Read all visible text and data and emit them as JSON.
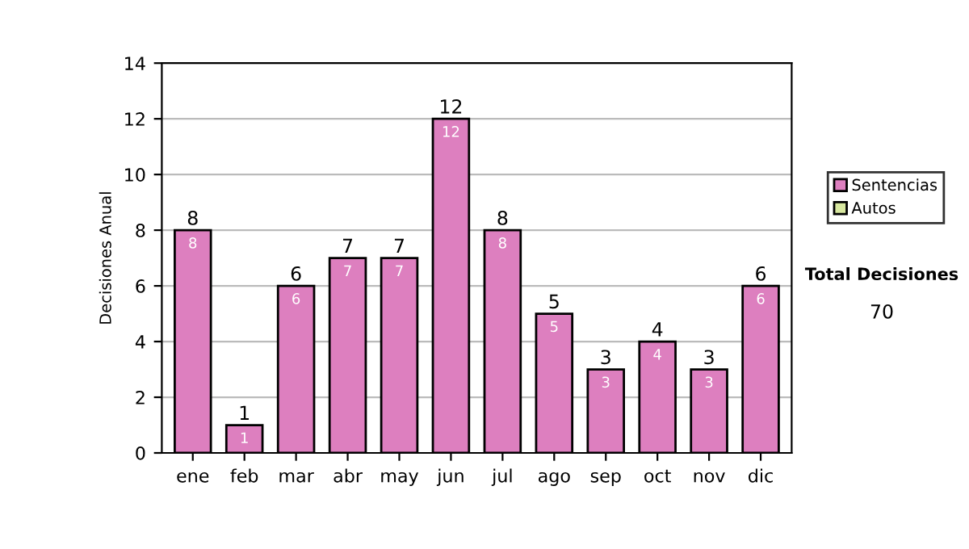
{
  "chart_data": {
    "type": "bar",
    "ylabel": "Decisiones Anual",
    "categories": [
      "ene",
      "feb",
      "mar",
      "abr",
      "may",
      "jun",
      "jul",
      "ago",
      "sep",
      "oct",
      "nov",
      "dic"
    ],
    "series": [
      {
        "name": "Sentencias",
        "color": "#dd7fbf",
        "values": [
          8,
          1,
          6,
          7,
          7,
          12,
          8,
          5,
          3,
          4,
          3,
          6
        ],
        "value_labels": [
          "8",
          "1",
          "6",
          "7",
          "7",
          "12",
          "8",
          "5",
          "3",
          "4",
          "3",
          "6"
        ]
      },
      {
        "name": "Autos",
        "color": "#d8e8a0",
        "values": [
          0,
          0,
          0,
          0,
          0,
          0,
          0,
          0,
          0,
          0,
          0,
          0
        ]
      }
    ],
    "stacked": true,
    "totals": [
      "8",
      "1",
      "6",
      "7",
      "7",
      "12",
      "8",
      "5",
      "3",
      "4",
      "3",
      "6"
    ],
    "ylim": [
      0,
      14
    ],
    "yticks": [
      0,
      2,
      4,
      6,
      8,
      10,
      12,
      14
    ],
    "grid": "y",
    "legend": "right",
    "annotations": [
      "Total Decisiones",
      "70"
    ]
  }
}
